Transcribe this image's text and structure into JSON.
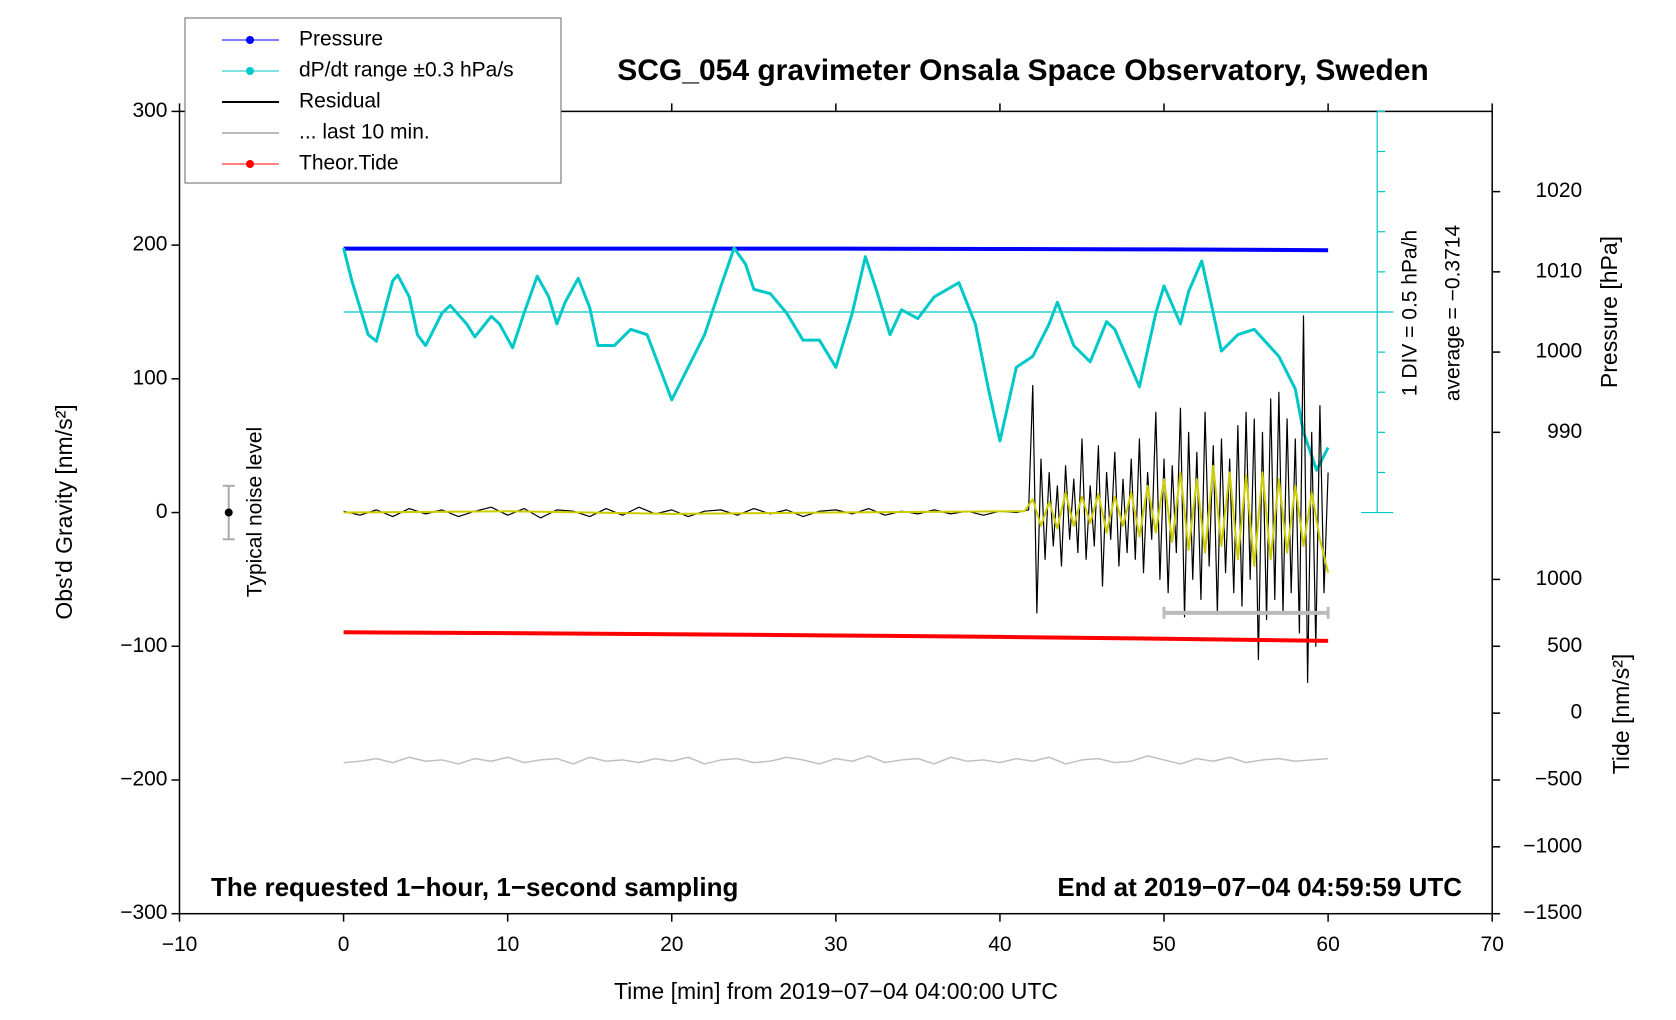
{
  "chart_data": {
    "type": "line",
    "title": "SCG_054 gravimeter Onsala Space Observatory, Sweden",
    "xlabel": "Time [min] from 2019−07−04 04:00:00 UTC",
    "ylabel": "Obs'd Gravity [nm/s²]",
    "y2label": "Pressure [hPa]",
    "y3label": "Tide [nm/s²]",
    "annotations": [
      "The requested 1−hour, 1−second sampling",
      "End at 2019−07−04 04:59:59 UTC",
      "1 DIV = 0.5 hPa/h",
      "average = −0.3714"
    ],
    "xlim": [
      -10,
      70
    ],
    "xticks": [
      {
        "value": -10,
        "label": "−10"
      },
      0,
      10,
      20,
      30,
      40,
      50,
      60,
      70
    ],
    "ylim": [
      -300,
      300
    ],
    "yticks": [
      {
        "value": -300,
        "label": "−300"
      },
      {
        "value": -200,
        "label": "−200"
      },
      {
        "value": -100,
        "label": "−100"
      },
      0,
      100,
      200,
      300
    ],
    "y2lim": [
      930,
      1030
    ],
    "y2ticks": [
      990,
      1000,
      1010,
      1020
    ],
    "y3lim": [
      -1500,
      4500
    ],
    "y3ticks": [
      {
        "value": -1500,
        "label": "−1500"
      },
      {
        "value": -1000,
        "label": "−1000"
      },
      {
        "value": -500,
        "label": "−500"
      },
      0,
      500,
      1000
    ],
    "y4lim": [
      -7.8714,
      2.1286
    ],
    "y4ticks": [
      -2.8714,
      -2.3714,
      -1.8714,
      -1.3714,
      -0.8714,
      -0.3714,
      0.1286,
      0.6286,
      1.1286,
      1.6286,
      2.1286
    ],
    "average": -0.3714,
    "legend": "upper left",
    "noise_bar": {
      "x": -7,
      "value": 0,
      "error": 20,
      "label": "Typical noise level"
    },
    "series": [
      {
        "name": "Pressure",
        "color": "#0000ff",
        "axis": "y2",
        "legend_marker": true,
        "width": 4,
        "x": [
          0,
          10,
          20,
          30,
          40,
          50,
          60
        ],
        "values": [
          1012.9,
          1012.9,
          1012.9,
          1012.9,
          1012.85,
          1012.8,
          1012.7
        ]
      },
      {
        "name": "dP/dt range ±0.3 hPa/s",
        "color": "#00c8c8",
        "axis": "y4",
        "legend_marker": true,
        "width": 3,
        "x": [
          0,
          0.5,
          1.5,
          2,
          3,
          3.3,
          4,
          4.5,
          5,
          6,
          6.5,
          7.5,
          8,
          9,
          9.5,
          10.3,
          11,
          11.8,
          12.5,
          13,
          13.5,
          14.3,
          15,
          15.5,
          16.5,
          17.5,
          18.5,
          19.5,
          20,
          21,
          22,
          23,
          23.8,
          24.5,
          25,
          26,
          27,
          28,
          29,
          30,
          31,
          31.8,
          32.5,
          33.3,
          34,
          35,
          36,
          37.5,
          38.5,
          39.3,
          40,
          41,
          42,
          43,
          43.5,
          44.5,
          45.5,
          46.5,
          47,
          48.5,
          49.5,
          50,
          51,
          51.5,
          52.3,
          53,
          53.5,
          54.5,
          55.5,
          57,
          58,
          58.5,
          59.3,
          60
        ],
        "values": [
          0.426,
          0.02,
          -0.655,
          -0.736,
          0.02,
          0.088,
          -0.182,
          -0.655,
          -0.79,
          -0.385,
          -0.29,
          -0.52,
          -0.682,
          -0.425,
          -0.52,
          -0.817,
          -0.385,
          0.075,
          -0.182,
          -0.52,
          -0.25,
          0.048,
          -0.317,
          -0.79,
          -0.79,
          -0.588,
          -0.655,
          -1.196,
          -1.466,
          -1.061,
          -0.655,
          -0.047,
          0.426,
          0.223,
          -0.088,
          -0.142,
          -0.385,
          -0.723,
          -0.723,
          -1.061,
          -0.385,
          0.318,
          -0.115,
          -0.655,
          -0.344,
          -0.453,
          -0.182,
          -0.007,
          -0.52,
          -1.331,
          -1.98,
          -1.061,
          -0.925,
          -0.52,
          -0.25,
          -0.79,
          -0.993,
          -0.493,
          -0.588,
          -1.304,
          -0.385,
          -0.047,
          -0.52,
          -0.115,
          0.264,
          -0.385,
          -0.858,
          -0.655,
          -0.588,
          -0.925,
          -1.331,
          -1.871,
          -2.344,
          -2.061
        ]
      },
      {
        "name": "Residual",
        "color": "#000000",
        "axis": "y",
        "width": 1.2,
        "x": [
          0,
          1,
          2,
          3,
          4,
          5,
          6,
          7,
          8,
          9,
          10,
          11,
          12,
          13,
          14,
          15,
          16,
          17,
          18,
          19,
          20,
          21,
          22,
          23,
          24,
          25,
          26,
          27,
          28,
          29,
          30,
          31,
          32,
          33,
          34,
          35,
          36,
          37,
          38,
          39,
          40,
          41,
          41.75,
          42,
          42.25,
          42.5,
          42.75,
          43,
          43.25,
          43.5,
          43.75,
          44,
          44.25,
          44.5,
          44.75,
          45,
          45.25,
          45.5,
          45.75,
          46,
          46.25,
          46.5,
          46.75,
          47,
          47.25,
          47.5,
          47.75,
          48,
          48.25,
          48.5,
          48.75,
          49,
          49.25,
          49.5,
          49.75,
          50,
          50.25,
          50.5,
          50.75,
          51,
          51.25,
          51.5,
          51.75,
          52,
          52.25,
          52.5,
          52.75,
          53,
          53.25,
          53.5,
          53.75,
          54,
          54.25,
          54.5,
          54.75,
          55,
          55.25,
          55.5,
          55.75,
          56,
          56.25,
          56.5,
          56.75,
          57,
          57.25,
          57.5,
          57.75,
          58,
          58.25,
          58.5,
          58.75,
          59,
          59.25,
          59.5,
          59.75,
          60
        ],
        "values": [
          1,
          -2,
          2,
          -3,
          3,
          -1,
          2,
          -3,
          1,
          4,
          -2,
          3,
          -4,
          2,
          1,
          -3,
          3,
          -2,
          4,
          -1,
          2,
          -3,
          1,
          2,
          -2,
          3,
          -1,
          2,
          -3,
          1,
          2,
          -1,
          3,
          -2,
          1,
          -1,
          2,
          -1,
          1,
          -2,
          1,
          0,
          2,
          95,
          -75,
          40,
          -35,
          30,
          -25,
          20,
          -40,
          35,
          -20,
          25,
          -30,
          55,
          -35,
          20,
          -25,
          50,
          -55,
          30,
          -20,
          45,
          -40,
          25,
          -30,
          40,
          -35,
          55,
          -45,
          30,
          -20,
          75,
          -50,
          40,
          -60,
          35,
          -30,
          78,
          -78,
          60,
          -50,
          45,
          -65,
          75,
          -40,
          50,
          -75,
          55,
          -45,
          40,
          -60,
          65,
          -70,
          75,
          -50,
          70,
          -110,
          60,
          -80,
          85,
          -65,
          90,
          -75,
          70,
          -60,
          55,
          -90,
          147,
          -127,
          60,
          -100,
          80,
          -60,
          30
        ]
      },
      {
        "name": "... last 10 min.",
        "color": "#bbbbbb",
        "axis": "y",
        "width": 4,
        "end_caps": true,
        "x": [
          50,
          60
        ],
        "values": [
          -75,
          -75
        ]
      },
      {
        "name": "Theor.Tide",
        "color": "#ff0000",
        "axis": "y3",
        "legend_marker": true,
        "width": 4,
        "x": [
          0,
          10,
          20,
          30,
          40,
          50,
          60
        ],
        "values": [
          605,
          598,
          590,
          581,
          570,
          556,
          540
        ]
      },
      {
        "color": "#cccc00",
        "axis": "y",
        "width": 2,
        "x": [
          0,
          10,
          20,
          30,
          41.5,
          42,
          42.5,
          43,
          43.5,
          44,
          44.5,
          45,
          45.5,
          46,
          46.5,
          47,
          47.5,
          48,
          48.5,
          49,
          49.5,
          50,
          50.5,
          51,
          51.5,
          52,
          52.5,
          53,
          53.5,
          54,
          54.5,
          55,
          55.5,
          56,
          56.5,
          57,
          57.5,
          58,
          58.5,
          59,
          59.5,
          60
        ],
        "values": [
          0,
          1,
          -1,
          0,
          1,
          10,
          -10,
          8,
          -12,
          15,
          -10,
          12,
          -8,
          14,
          -15,
          12,
          -10,
          15,
          -18,
          20,
          -15,
          25,
          -22,
          30,
          -28,
          25,
          -30,
          35,
          -25,
          30,
          -35,
          28,
          -40,
          30,
          -35,
          25,
          -30,
          20,
          -25,
          15,
          -20,
          -45
        ]
      },
      {
        "color": "#c0c0c0",
        "axis": "y",
        "width": 1.5,
        "x": [
          0,
          1,
          2,
          3,
          4,
          5,
          6,
          7,
          8,
          9,
          10,
          11,
          12,
          13,
          14,
          15,
          16,
          17,
          18,
          19,
          20,
          21,
          22,
          23,
          24,
          25,
          26,
          27,
          28,
          29,
          30,
          31,
          32,
          33,
          34,
          35,
          36,
          37,
          38,
          39,
          40,
          41,
          42,
          43,
          44,
          45,
          46,
          47,
          48,
          49,
          50,
          51,
          52,
          53,
          54,
          55,
          56,
          57,
          58,
          59,
          60
        ],
        "values": [
          -187,
          -186,
          -184,
          -187,
          -183,
          -186,
          -185,
          -188,
          -184,
          -186,
          -183,
          -187,
          -185,
          -184,
          -188,
          -183,
          -186,
          -185,
          -187,
          -184,
          -186,
          -183,
          -188,
          -185,
          -184,
          -187,
          -186,
          -183,
          -185,
          -188,
          -184,
          -186,
          -182,
          -187,
          -185,
          -184,
          -188,
          -183,
          -186,
          -185,
          -187,
          -184,
          -186,
          -183,
          -188,
          -185,
          -184,
          -187,
          -186,
          -182,
          -185,
          -188,
          -184,
          -186,
          -183,
          -187,
          -185,
          -184,
          -186,
          -185,
          -184
        ]
      }
    ]
  }
}
